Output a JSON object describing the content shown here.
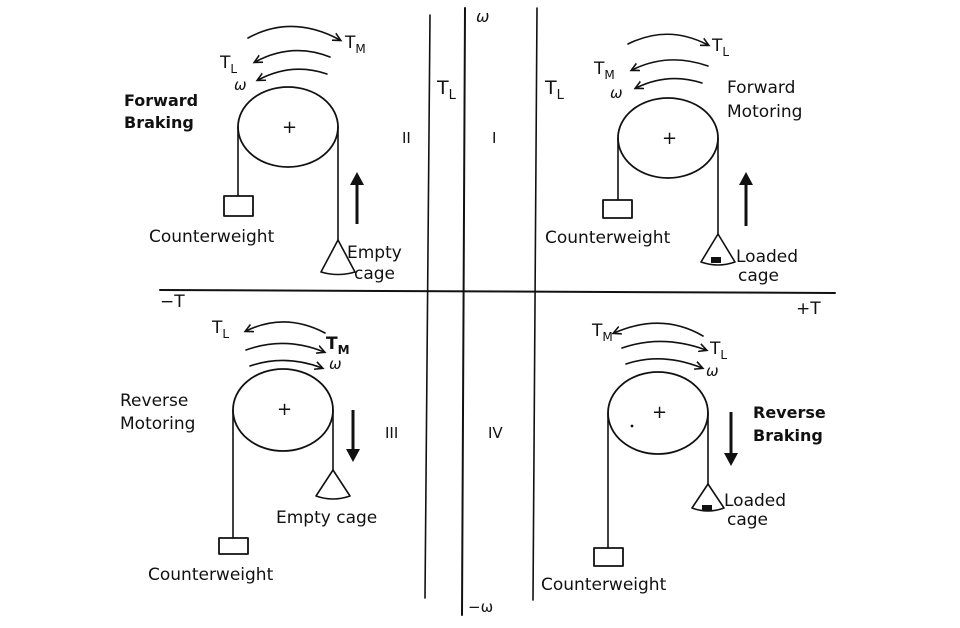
{
  "axes": {
    "omega_pos": "ω",
    "omega_neg": "−ω",
    "torque_pos": "+T",
    "torque_neg": "−T",
    "tl_left": "T",
    "tl_left_sub": "L",
    "tl_right": "T",
    "tl_right_sub": "L"
  },
  "quadrants": [
    {
      "numeral": "II",
      "title_line1": "Forward",
      "title_line2": "Braking",
      "counterweight": "Counterweight",
      "cage_line1": "Empty",
      "cage_line2": "cage",
      "torque_outer": "T",
      "torque_outer_sub": "M",
      "torque_inner": "T",
      "torque_inner_sub": "L",
      "speed": "ω",
      "motion": "up"
    },
    {
      "numeral": "I",
      "title_line1": "Forward",
      "title_line2": "Motoring",
      "counterweight": "Counterweight",
      "cage_line1": "Loaded",
      "cage_line2": "cage",
      "torque_outer": "T",
      "torque_outer_sub": "L",
      "torque_inner": "T",
      "torque_inner_sub": "M",
      "speed": "ω",
      "motion": "up"
    },
    {
      "numeral": "III",
      "title_line1": "Reverse",
      "title_line2": "Motoring",
      "counterweight": "Counterweight",
      "cage_line1": "Empty cage",
      "torque_outer": "T",
      "torque_outer_sub": "L",
      "torque_inner": "T",
      "torque_inner_sub": "M",
      "speed": "ω",
      "motion": "down"
    },
    {
      "numeral": "IV",
      "title_line1": "Reverse",
      "title_line2": "Braking",
      "counterweight": "Counterweight",
      "cage_line1": "Loaded",
      "cage_line2": "cage",
      "torque_outer": "T",
      "torque_outer_sub": "M",
      "torque_inner": "T",
      "torque_inner_sub": "L",
      "speed": "ω",
      "motion": "down"
    }
  ],
  "pulley_mark": "+"
}
